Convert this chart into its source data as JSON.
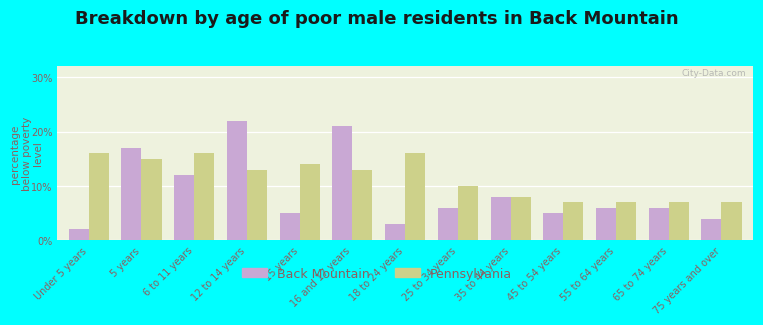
{
  "title": "Breakdown by age of poor male residents in Back Mountain",
  "ylabel": "percentage\nbelow poverty\nlevel",
  "categories": [
    "Under 5 years",
    "5 years",
    "6 to 11 years",
    "12 to 14 years",
    "15 years",
    "16 and 17 years",
    "18 to 24 years",
    "25 to 34 years",
    "35 to 44 years",
    "45 to 54 years",
    "55 to 64 years",
    "65 to 74 years",
    "75 years and over"
  ],
  "back_mountain": [
    2,
    17,
    12,
    22,
    5,
    21,
    3,
    6,
    8,
    5,
    6,
    6,
    4
  ],
  "pennsylvania": [
    16,
    15,
    16,
    13,
    14,
    13,
    16,
    10,
    8,
    7,
    7,
    7,
    7
  ],
  "bar_color_bm": "#c9a8d4",
  "bar_color_pa": "#cdd18a",
  "background_color": "#00ffff",
  "plot_bg": "#eef2de",
  "title_color": "#1a1a1a",
  "label_color": "#8b6060",
  "legend_bm_label": "Back Mountain",
  "legend_pa_label": "Pennsylvania",
  "ylim": [
    0,
    32
  ],
  "yticks": [
    0,
    10,
    20,
    30
  ],
  "ytick_labels": [
    "0%",
    "10%",
    "20%",
    "30%"
  ],
  "bar_width": 0.38,
  "title_fontsize": 13,
  "axis_label_fontsize": 7.5,
  "tick_label_fontsize": 7,
  "legend_fontsize": 9
}
